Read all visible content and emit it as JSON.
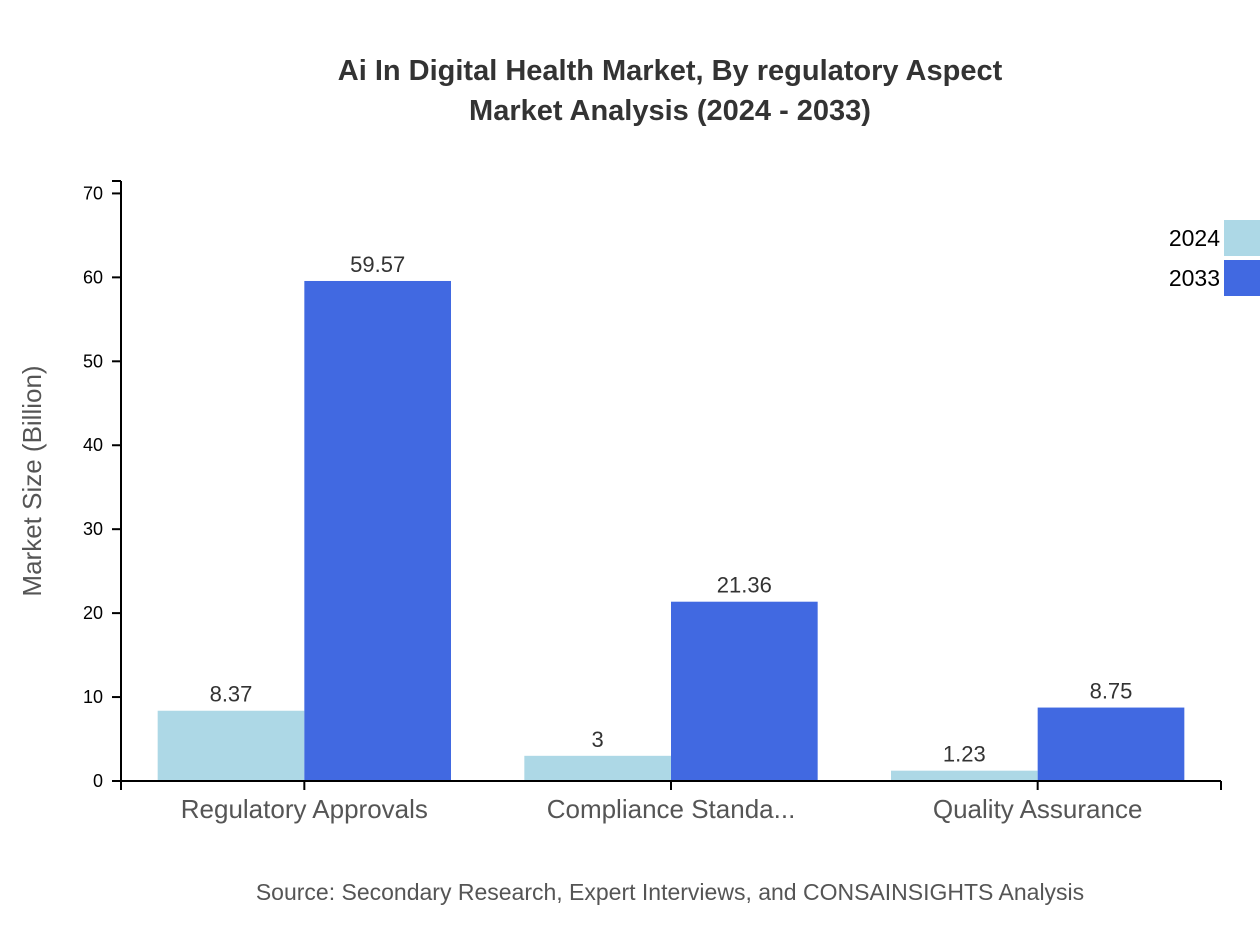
{
  "chart_data": {
    "type": "bar",
    "title_line1": "Ai In Digital Health Market, By regulatory Aspect",
    "title_line2": "Market Analysis (2024 - 2033)",
    "xlabel": "",
    "ylabel": "Market Size (Billion)",
    "categories": [
      "Regulatory Approvals",
      "Compliance Standa...",
      "Quality Assurance"
    ],
    "series": [
      {
        "name": "2024",
        "color": "#ADD8E6",
        "values": [
          8.37,
          3,
          1.23
        ]
      },
      {
        "name": "2033",
        "color": "#4169E1",
        "values": [
          59.57,
          21.36,
          8.75
        ]
      }
    ],
    "ylim": [
      0,
      71.48
    ],
    "yticks": [
      0,
      10,
      20,
      30,
      40,
      50,
      60,
      70
    ],
    "grid": false,
    "legend_position": "top-right",
    "source": "Source: Secondary Research, Expert Interviews, and CONSAINSIGHTS Analysis"
  }
}
